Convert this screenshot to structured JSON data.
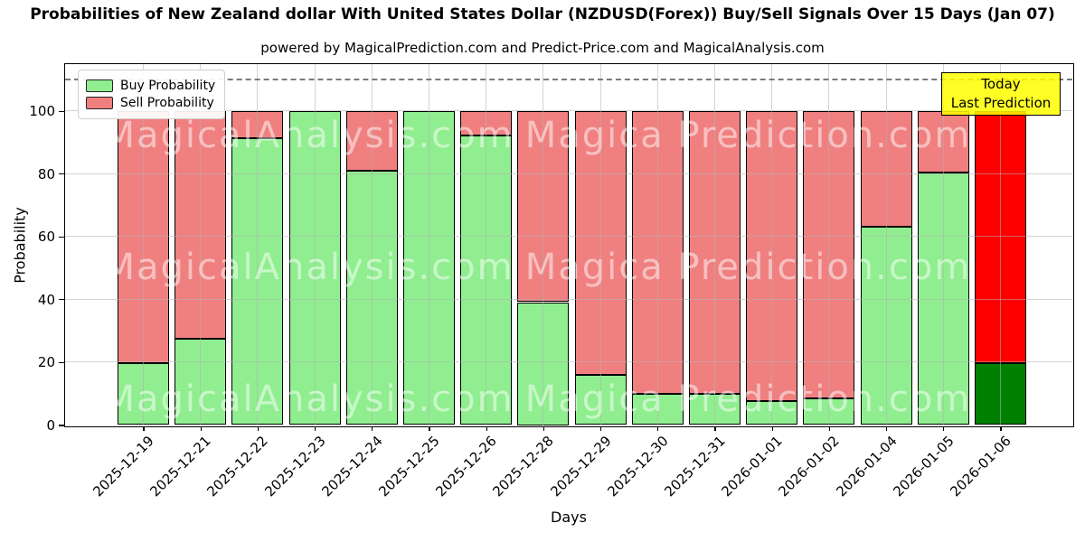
{
  "annotation": {
    "line1": "Today",
    "line2": "Last Prediction",
    "bg_color": "#ffff00"
  },
  "watermark": {
    "left_text": "MagicalAnalysis.com",
    "right_text": "Magica Prediction.com"
  },
  "chart_data": {
    "type": "bar",
    "stacked": true,
    "title": "Probabilities of New Zealand dollar With United States Dollar (NZDUSD(Forex)) Buy/Sell Signals Over 15 Days (Jan 07)",
    "subtitle": "powered by MagicalPrediction.com and Predict-Price.com and MagicalAnalysis.com",
    "xlabel": "Days",
    "ylabel": "Probability",
    "ylim": [
      0,
      115
    ],
    "yticks": [
      0,
      20,
      40,
      60,
      80,
      100
    ],
    "dashed_line_y": 110,
    "grid": true,
    "legend_position": "upper left",
    "categories": [
      "2025-12-19",
      "2025-12-21",
      "2025-12-22",
      "2025-12-23",
      "2025-12-24",
      "2025-12-25",
      "2025-12-26",
      "2025-12-28",
      "2025-12-29",
      "2025-12-30",
      "2025-12-31",
      "2026-01-01",
      "2026-01-02",
      "2026-01-04",
      "2026-01-05",
      "2026-01-06"
    ],
    "series": [
      {
        "name": "Buy Probability",
        "color": "#90ee90",
        "values": [
          19.6,
          27.4,
          91.2,
          100,
          80.8,
          100,
          92.2,
          39.1,
          16.0,
          9.8,
          9.8,
          7.6,
          8.5,
          63.1,
          80.4,
          19.6
        ]
      },
      {
        "name": "Sell Probability",
        "color": "#f08080",
        "values": [
          80.4,
          72.6,
          8.8,
          0,
          19.2,
          0,
          7.8,
          60.9,
          84.0,
          90.2,
          90.2,
          92.4,
          91.5,
          36.9,
          19.6,
          80.4
        ]
      }
    ],
    "last_bar_colors": {
      "buy": "#008000",
      "sell": "#ff0000"
    }
  }
}
